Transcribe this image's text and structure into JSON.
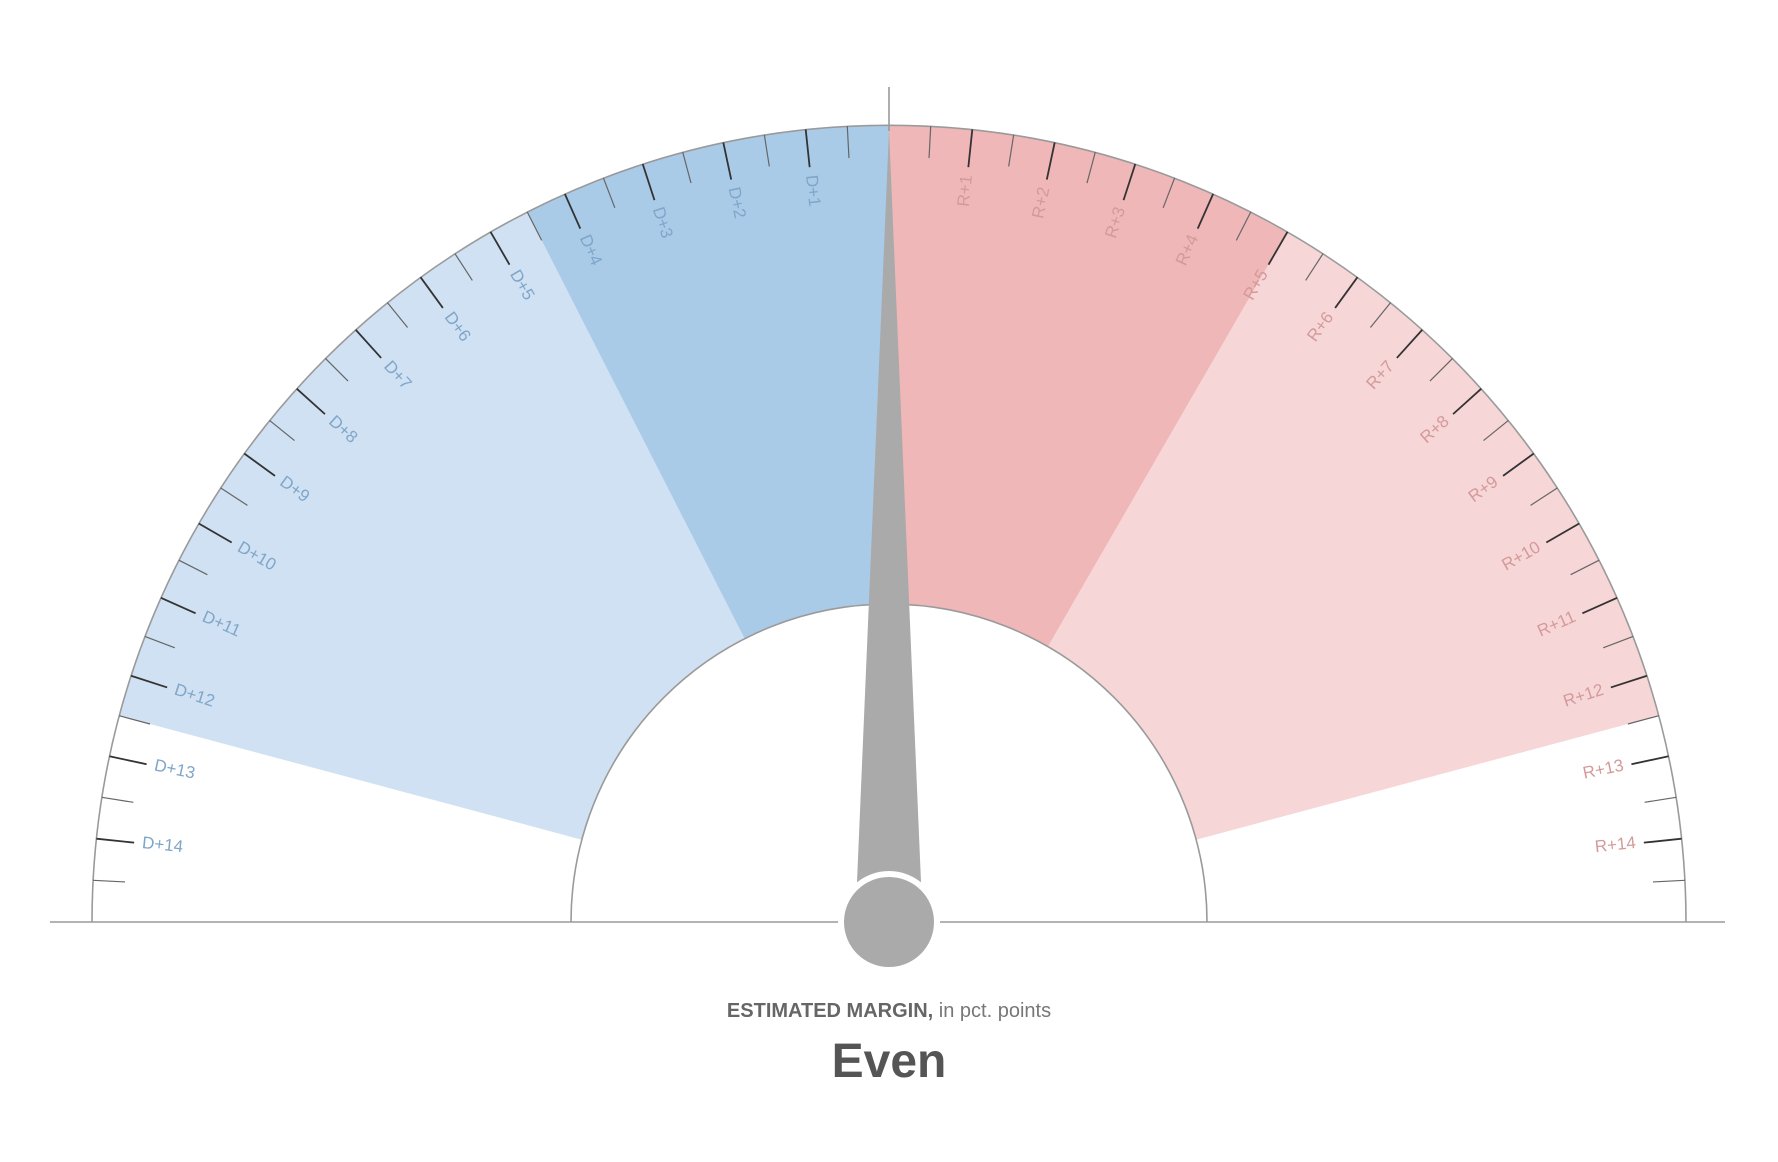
{
  "chart_data": {
    "type": "gauge",
    "axis": {
      "min": -15,
      "max": 15,
      "major_step": 1,
      "minor_step": 0.5
    },
    "bands": [
      {
        "from": -12.5,
        "to": -4.5,
        "color": "#cfe1f2"
      },
      {
        "from": -4.5,
        "to": 0,
        "color": "#a9cbe8"
      },
      {
        "from": 0,
        "to": 5,
        "color": "#efb7b8"
      },
      {
        "from": 5,
        "to": 12.5,
        "color": "#f6d6d7"
      }
    ],
    "tick_labels": [
      {
        "value": -14,
        "text": "D+14"
      },
      {
        "value": -13,
        "text": "D+13"
      },
      {
        "value": -12,
        "text": "D+12"
      },
      {
        "value": -11,
        "text": "D+11"
      },
      {
        "value": -10,
        "text": "D+10"
      },
      {
        "value": -9,
        "text": "D+9"
      },
      {
        "value": -8,
        "text": "D+8"
      },
      {
        "value": -7,
        "text": "D+7"
      },
      {
        "value": -6,
        "text": "D+6"
      },
      {
        "value": -5,
        "text": "D+5"
      },
      {
        "value": -4,
        "text": "D+4"
      },
      {
        "value": -3,
        "text": "D+3"
      },
      {
        "value": -2,
        "text": "D+2"
      },
      {
        "value": -1,
        "text": "D+1"
      },
      {
        "value": 1,
        "text": "R+1"
      },
      {
        "value": 2,
        "text": "R+2"
      },
      {
        "value": 3,
        "text": "R+3"
      },
      {
        "value": 4,
        "text": "R+4"
      },
      {
        "value": 5,
        "text": "R+5"
      },
      {
        "value": 6,
        "text": "R+6"
      },
      {
        "value": 7,
        "text": "R+7"
      },
      {
        "value": 8,
        "text": "R+8"
      },
      {
        "value": 9,
        "text": "R+9"
      },
      {
        "value": 10,
        "text": "R+10"
      },
      {
        "value": 11,
        "text": "R+11"
      },
      {
        "value": 12,
        "text": "R+12"
      },
      {
        "value": 13,
        "text": "R+13"
      },
      {
        "value": 14,
        "text": "R+14"
      }
    ],
    "needle_value": 0,
    "colors": {
      "dem_label": "#7fa6c9",
      "rep_label": "#d49a9a",
      "needle": "#aaaaaa",
      "outline": "#9a9a9a",
      "tick_dark": "#333333"
    }
  },
  "caption": {
    "label": "ESTIMATED MARGIN,",
    "unit": "in pct. points"
  },
  "value_text": "Even"
}
